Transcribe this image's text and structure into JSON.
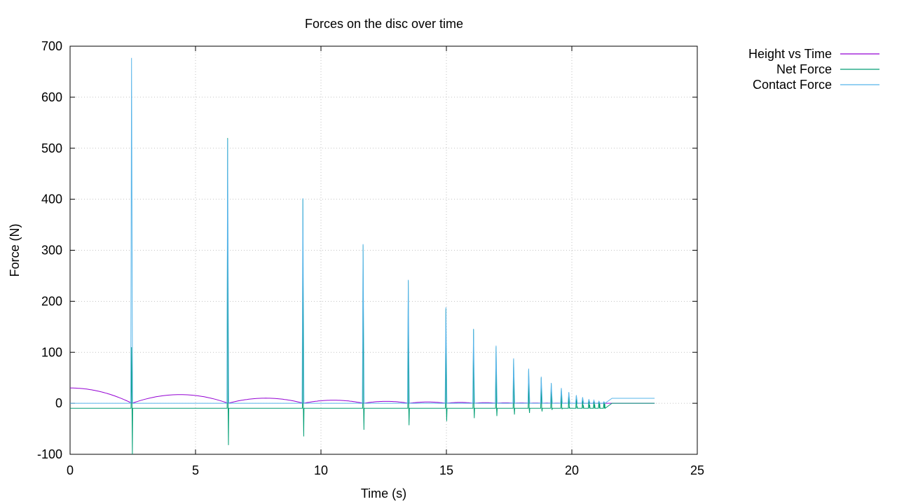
{
  "chart_data": {
    "type": "line",
    "title": "Forces on the disc over time",
    "xlabel": "Time (s)",
    "ylabel": "Force (N)",
    "xlim": [
      0,
      25
    ],
    "ylim": [
      -100,
      700
    ],
    "xticks": [
      "0",
      "5",
      "10",
      "15",
      "20",
      "25"
    ],
    "yticks": [
      "-100",
      "0",
      "100",
      "200",
      "300",
      "400",
      "500",
      "600",
      "700"
    ],
    "grid": true,
    "legend_position": "outside-top-right",
    "bounce_times": [
      2.47,
      6.3,
      9.3,
      11.7,
      13.5,
      15.0,
      16.1,
      17.0,
      17.7,
      18.3,
      18.8,
      19.2,
      19.6,
      19.9,
      20.2,
      20.45,
      20.7,
      20.9,
      21.1,
      21.3
    ],
    "series": [
      {
        "name": "Height vs Time",
        "color": "#9400d3",
        "apex_heights": [
          30,
          17,
          10,
          6,
          3.8,
          2.5,
          1.7,
          1.2,
          0.9,
          0.7,
          0.5,
          0.4,
          0.3,
          0.25,
          0.2,
          0.15,
          0.1,
          0.08,
          0.05,
          0.03
        ]
      },
      {
        "name": "Net Force",
        "color": "#009e73",
        "baseline": -9.8,
        "spike_max": [
          110,
          520,
          400,
          310,
          240,
          185,
          145,
          110,
          85,
          65,
          50,
          38,
          28,
          20,
          14,
          10,
          6,
          4,
          3,
          2
        ],
        "spike_min": [
          -100,
          -82,
          -65,
          -52,
          -43,
          -35,
          -29,
          -25,
          -22,
          -19,
          -16,
          -13,
          -11,
          -8,
          -6,
          -4,
          -3,
          -2,
          -1,
          -1
        ],
        "final_value": 0
      },
      {
        "name": "Contact Force",
        "color": "#56b4e9",
        "baseline": 0,
        "spike_max": [
          677,
          518,
          402,
          312,
          242,
          188,
          146,
          113,
          88,
          68,
          52,
          40,
          30,
          22,
          16,
          12,
          8,
          6,
          4,
          3
        ],
        "final_value": 9.8
      }
    ],
    "x_end": 23.3
  }
}
